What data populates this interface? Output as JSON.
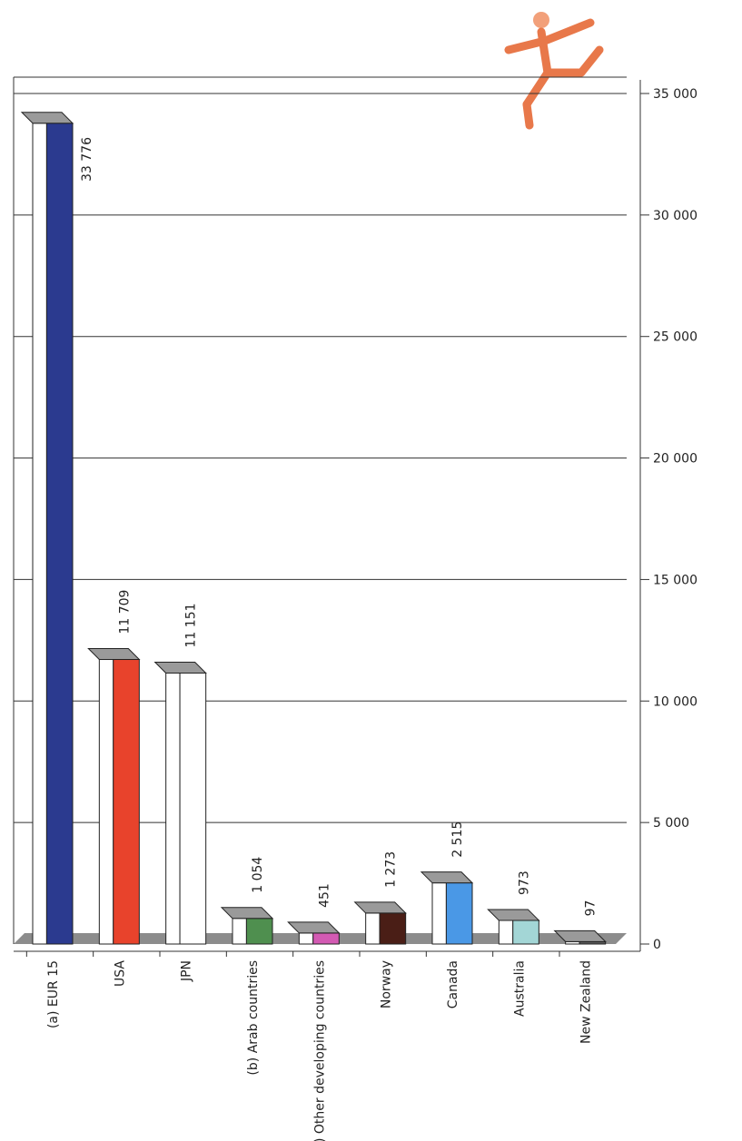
{
  "chart_data": {
    "type": "bar",
    "categories": [
      "(a) EUR 15",
      "USA",
      "JPN",
      "(b) Arab countries",
      "(c) Other developing countries",
      "Norway",
      "Canada",
      "Australia",
      "New Zealand"
    ],
    "values": [
      33776,
      11709,
      11151,
      1054,
      451,
      1273,
      2515,
      973,
      97
    ],
    "value_labels": [
      "33 776",
      "11 709",
      "11 151",
      "1 054",
      "451",
      "1 273",
      "2 515",
      "973",
      "97"
    ],
    "colors": [
      "#2b3a8f",
      "#e8432c",
      "#ffffff",
      "#4f8f4f",
      "#d35ab3",
      "#4a1e16",
      "#4a98e6",
      "#a3d6d6",
      "#5a5a5a"
    ],
    "ylim": [
      0,
      35000
    ],
    "yticks": [
      0,
      {
        "value": 5000,
        "label": "5 000"
      },
      {
        "value": 10000,
        "label": "10 000"
      },
      {
        "value": 15000,
        "label": "15 000"
      },
      {
        "value": 20000,
        "label": "20 000"
      },
      {
        "value": 25000,
        "label": "25 000"
      },
      {
        "value": 30000,
        "label": "30 000"
      },
      {
        "value": 35000,
        "label": "35 000"
      }
    ],
    "grid": true
  }
}
